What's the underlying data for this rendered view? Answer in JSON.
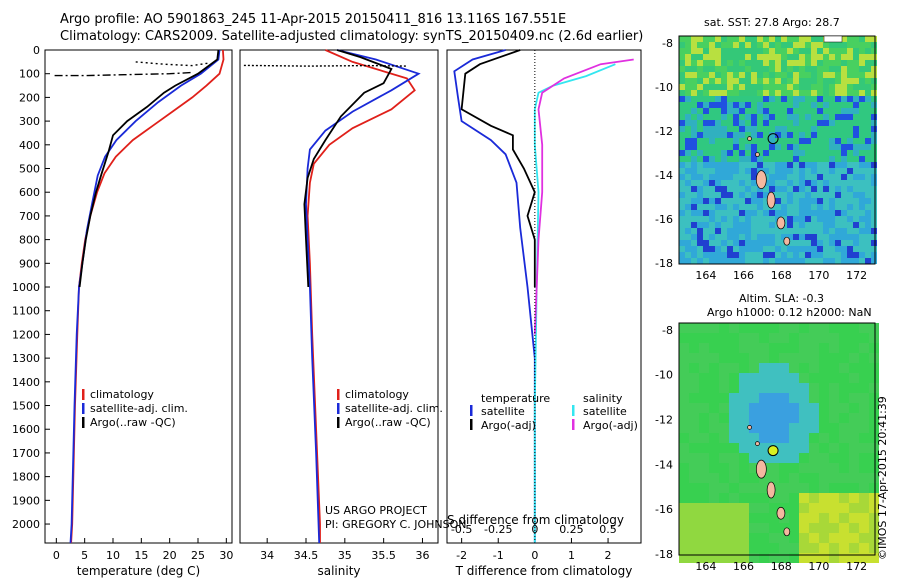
{
  "header": {
    "line1": "Argo profile: AO 5901863_245 11-Apr-2015 20150411_816 13.116S 167.551E",
    "line2": "Climatology: CARS2009. Satellite-adjusted climatology: synTS_20150409.nc (2.6d earlier)"
  },
  "colors": {
    "climatology": "#e0201a",
    "satellite": "#1a2ad8",
    "argo": "#000000",
    "satellite_sal": "#33e6f0",
    "argo_sal": "#e030e0"
  },
  "chart_data": [
    {
      "type": "line",
      "id": "temperature",
      "xlabel": "temperature (deg C)",
      "ylabel": "",
      "xlim": [
        -2,
        31
      ],
      "ylim": [
        2080,
        0
      ],
      "xticks": [
        0,
        5,
        10,
        15,
        20,
        25,
        30
      ],
      "yticks": [
        0,
        100,
        200,
        300,
        400,
        500,
        600,
        700,
        800,
        900,
        1000,
        1100,
        1200,
        1300,
        1400,
        1500,
        1600,
        1700,
        1800,
        1900,
        2000
      ],
      "legend": [
        "climatology",
        "satellite-adj. clim.",
        "Argo(..raw -QC)"
      ],
      "series": [
        {
          "name": "climatology",
          "color": "#e0201a",
          "points": [
            [
              29.4,
              0
            ],
            [
              29.5,
              40
            ],
            [
              28.8,
              100
            ],
            [
              26.5,
              150
            ],
            [
              24,
              200
            ],
            [
              20.5,
              260
            ],
            [
              17,
              320
            ],
            [
              13.5,
              380
            ],
            [
              10.5,
              450
            ],
            [
              8.5,
              520
            ],
            [
              7.2,
              600
            ],
            [
              6,
              700
            ],
            [
              5.1,
              800
            ],
            [
              4.5,
              900
            ],
            [
              4,
              1000
            ],
            [
              3.7,
              1200
            ],
            [
              3.3,
              1500
            ],
            [
              2.8,
              2000
            ],
            [
              2.6,
              2080
            ]
          ]
        },
        {
          "name": "satellite-adj. clim.",
          "color": "#1a2ad8",
          "points": [
            [
              28.8,
              0
            ],
            [
              28.6,
              40
            ],
            [
              25.5,
              100
            ],
            [
              22,
              150
            ],
            [
              18,
              220
            ],
            [
              14,
              300
            ],
            [
              10.6,
              380
            ],
            [
              8.6,
              450
            ],
            [
              7.3,
              530
            ],
            [
              6.3,
              650
            ],
            [
              5.4,
              760
            ],
            [
              4.6,
              900
            ],
            [
              4,
              1000
            ],
            [
              3.6,
              1200
            ],
            [
              3.2,
              1500
            ],
            [
              2.7,
              2000
            ],
            [
              2.5,
              2080
            ]
          ]
        },
        {
          "name": "Argo",
          "color": "#000000",
          "points": [
            [
              28.6,
              0
            ],
            [
              28.4,
              40
            ],
            [
              25,
              100
            ],
            [
              21,
              150
            ],
            [
              19,
              180
            ],
            [
              16,
              240
            ],
            [
              12.5,
              300
            ],
            [
              10,
              360
            ],
            [
              9.2,
              430
            ],
            [
              8,
              520
            ],
            [
              7,
              600
            ],
            [
              6,
              700
            ],
            [
              5.2,
              800
            ],
            [
              4.6,
              900
            ],
            [
              4.1,
              1000
            ]
          ]
        },
        {
          "name": "Argo raw",
          "color": "#000000",
          "dash": "2,3",
          "points": [
            [
              14,
              50
            ],
            [
              19,
              60
            ],
            [
              24,
              66
            ],
            [
              27,
              55
            ]
          ]
        },
        {
          "name": "Argo raw",
          "color": "#000000",
          "dash": "8,3,2,3",
          "points": [
            [
              -0.3,
              108
            ],
            [
              5,
              108
            ],
            [
              12,
              104
            ],
            [
              20,
              100
            ],
            [
              24,
              95
            ]
          ]
        }
      ]
    },
    {
      "type": "line",
      "id": "salinity",
      "xlabel": "salinity",
      "xlim": [
        33.65,
        36.2
      ],
      "ylim": [
        2080,
        0
      ],
      "xticks": [
        34,
        34.5,
        35,
        35.5,
        36
      ],
      "legend": [
        "climatology",
        "satellite-adj. clim.",
        "Argo(..raw -QC)"
      ],
      "annotation": [
        "US ARGO PROJECT",
        "PI: GREGORY C. JOHNSON"
      ],
      "series": [
        {
          "name": "climatology",
          "color": "#e0201a",
          "points": [
            [
              34.75,
              0
            ],
            [
              35.1,
              50
            ],
            [
              35.8,
              120
            ],
            [
              35.9,
              170
            ],
            [
              35.6,
              250
            ],
            [
              35.1,
              330
            ],
            [
              34.8,
              400
            ],
            [
              34.6,
              480
            ],
            [
              34.55,
              560
            ],
            [
              34.52,
              700
            ],
            [
              34.55,
              900
            ],
            [
              34.58,
              1200
            ],
            [
              34.63,
              1600
            ],
            [
              34.68,
              2000
            ],
            [
              34.68,
              2080
            ]
          ]
        },
        {
          "name": "satellite-adj. clim.",
          "color": "#1a2ad8",
          "points": [
            [
              34.9,
              0
            ],
            [
              35.4,
              40
            ],
            [
              35.95,
              100
            ],
            [
              35.6,
              170
            ],
            [
              35.1,
              260
            ],
            [
              34.75,
              340
            ],
            [
              34.55,
              420
            ],
            [
              34.52,
              500
            ],
            [
              34.5,
              650
            ],
            [
              34.52,
              800
            ],
            [
              34.55,
              1000
            ],
            [
              34.58,
              1300
            ],
            [
              34.63,
              1700
            ],
            [
              34.67,
              2080
            ]
          ]
        },
        {
          "name": "Argo",
          "color": "#000000",
          "points": [
            [
              34.9,
              0
            ],
            [
              35.2,
              30
            ],
            [
              35.6,
              80
            ],
            [
              35.5,
              140
            ],
            [
              35.25,
              180
            ],
            [
              34.95,
              280
            ],
            [
              34.75,
              380
            ],
            [
              34.6,
              460
            ],
            [
              34.52,
              540
            ],
            [
              34.48,
              650
            ],
            [
              34.5,
              800
            ],
            [
              34.53,
              1000
            ]
          ]
        },
        {
          "name": "Argo raw",
          "color": "#000000",
          "dash": "2,2",
          "points": [
            [
              33.7,
              65
            ],
            [
              34.5,
              68
            ],
            [
              35.3,
              66
            ],
            [
              35.8,
              68
            ]
          ]
        }
      ]
    },
    {
      "type": "line",
      "id": "difference",
      "xlabel": "T difference from climatology",
      "xlabel2": "S difference from climatology",
      "xlim": [
        -2.4,
        2.9
      ],
      "ylim": [
        2080,
        0
      ],
      "xticks": [
        -2,
        -1,
        0,
        1,
        2
      ],
      "xticks_top": [
        -0.5,
        -0.25,
        0,
        0.25,
        0.5
      ],
      "legend_temperature": [
        "temperature",
        "satellite",
        "Argo(-adj)"
      ],
      "legend_salinity": [
        "salinity",
        "satellite",
        "Argo(-adj)"
      ],
      "series": [
        {
          "name": "T satellite",
          "color": "#1a2ad8",
          "points": [
            [
              -0.8,
              0
            ],
            [
              -1.7,
              40
            ],
            [
              -2.2,
              90
            ],
            [
              -2.1,
              200
            ],
            [
              -2,
              300
            ],
            [
              -1.2,
              380
            ],
            [
              -0.8,
              440
            ],
            [
              -0.5,
              560
            ],
            [
              -0.4,
              750
            ],
            [
              -0.2,
              1000
            ],
            [
              0,
              1300
            ],
            [
              0,
              2080
            ]
          ]
        },
        {
          "name": "T Argo",
          "color": "#000000",
          "points": [
            [
              -0.4,
              0
            ],
            [
              -1.5,
              60
            ],
            [
              -1.9,
              100
            ],
            [
              -2,
              250
            ],
            [
              -1.2,
              320
            ],
            [
              -0.6,
              360
            ],
            [
              -0.6,
              420
            ],
            [
              -0.3,
              500
            ],
            [
              0,
              600
            ],
            [
              -0.2,
              700
            ],
            [
              0,
              800
            ],
            [
              0,
              1000
            ]
          ]
        },
        {
          "name": "S satellite",
          "color": "#33e6f0",
          "points": [
            [
              2.2,
              60
            ],
            [
              1.4,
              110
            ],
            [
              0.5,
              150
            ],
            [
              0.1,
              180
            ],
            [
              0,
              250
            ],
            [
              0,
              400
            ],
            [
              0.1,
              600
            ],
            [
              0.05,
              1000
            ],
            [
              0,
              1500
            ],
            [
              0,
              2080
            ]
          ]
        },
        {
          "name": "S Argo",
          "color": "#e030e0",
          "points": [
            [
              2.7,
              40
            ],
            [
              1.8,
              60
            ],
            [
              0.8,
              120
            ],
            [
              0.2,
              180
            ],
            [
              0.1,
              250
            ],
            [
              0.2,
              400
            ],
            [
              0.2,
              600
            ],
            [
              0.1,
              800
            ],
            [
              0.05,
              1000
            ],
            [
              0,
              1200
            ]
          ]
        }
      ]
    }
  ],
  "maps": {
    "top_title": "sat. SST: 27.8 Argo: 28.7",
    "bottom_title1": "Altim. SLA: -0.3",
    "bottom_title2": "Argo h1000: 0.12 h2000: NaN",
    "xticks": [
      "164",
      "166",
      "168",
      "170",
      "172"
    ],
    "yticks": [
      "-8",
      "-10",
      "-12",
      "-14",
      "-16",
      "-18"
    ]
  },
  "stamp": "©IMOS 17-Apr-2015 20:41:39"
}
